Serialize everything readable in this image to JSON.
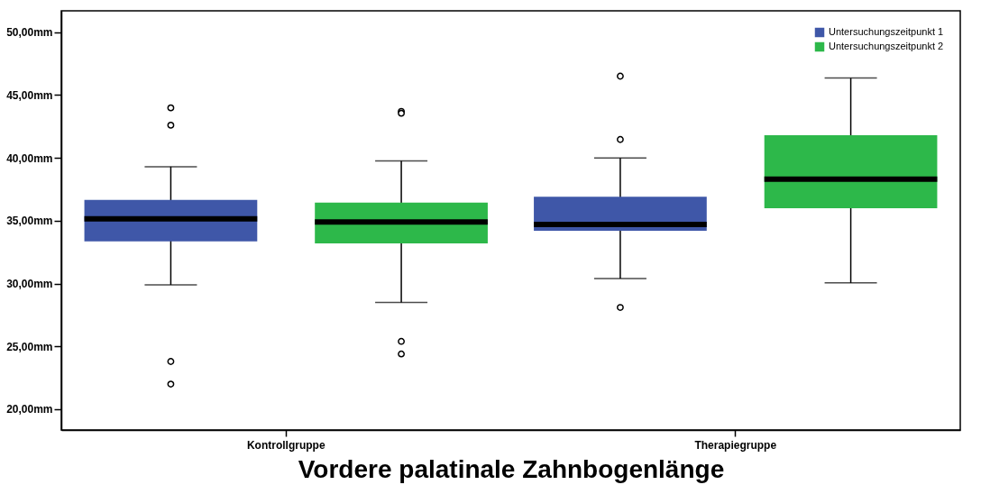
{
  "chart_data": {
    "type": "box",
    "xlabel": "Vordere palatinale Zahnbogenlänge",
    "categories": [
      "Kontrollgruppe",
      "Therapiegruppe"
    ],
    "series": [
      {
        "name": "Untersuchungszeitpunkt 1",
        "color": "#3f57a8",
        "boxes": [
          {
            "low": 29.9,
            "q1": 33.35,
            "median": 35.15,
            "q3": 36.65,
            "high": 39.3,
            "outliers": [
              43.98,
              42.6,
              23.8,
              22.0
            ]
          },
          {
            "low": 30.4,
            "q1": 34.2,
            "median": 34.7,
            "q3": 36.9,
            "high": 40.0,
            "outliers": [
              41.46,
              28.1,
              46.5
            ]
          }
        ]
      },
      {
        "name": "Untersuchungszeitpunkt 2",
        "color": "#2db84a",
        "boxes": [
          {
            "low": 28.5,
            "q1": 33.2,
            "median": 34.9,
            "q3": 36.45,
            "high": 39.75,
            "outliers": [
              43.7,
              43.55,
              25.4,
              24.4
            ]
          },
          {
            "low": 30.05,
            "q1": 36.0,
            "median": 38.3,
            "q3": 41.8,
            "high": 46.35
          }
        ]
      }
    ],
    "ylim": [
      18.35,
      51.7
    ],
    "yticks": [
      {
        "value": 20,
        "label": "20,00mm"
      },
      {
        "value": 25,
        "label": "25,00mm"
      },
      {
        "value": 30,
        "label": "30,00mm"
      },
      {
        "value": 35,
        "label": "35,00mm"
      },
      {
        "value": 40,
        "label": "40,00mm"
      },
      {
        "value": 45,
        "label": "45,00mm"
      },
      {
        "value": 50,
        "label": "50,00mm"
      }
    ],
    "grid": false,
    "legend": "top right"
  }
}
